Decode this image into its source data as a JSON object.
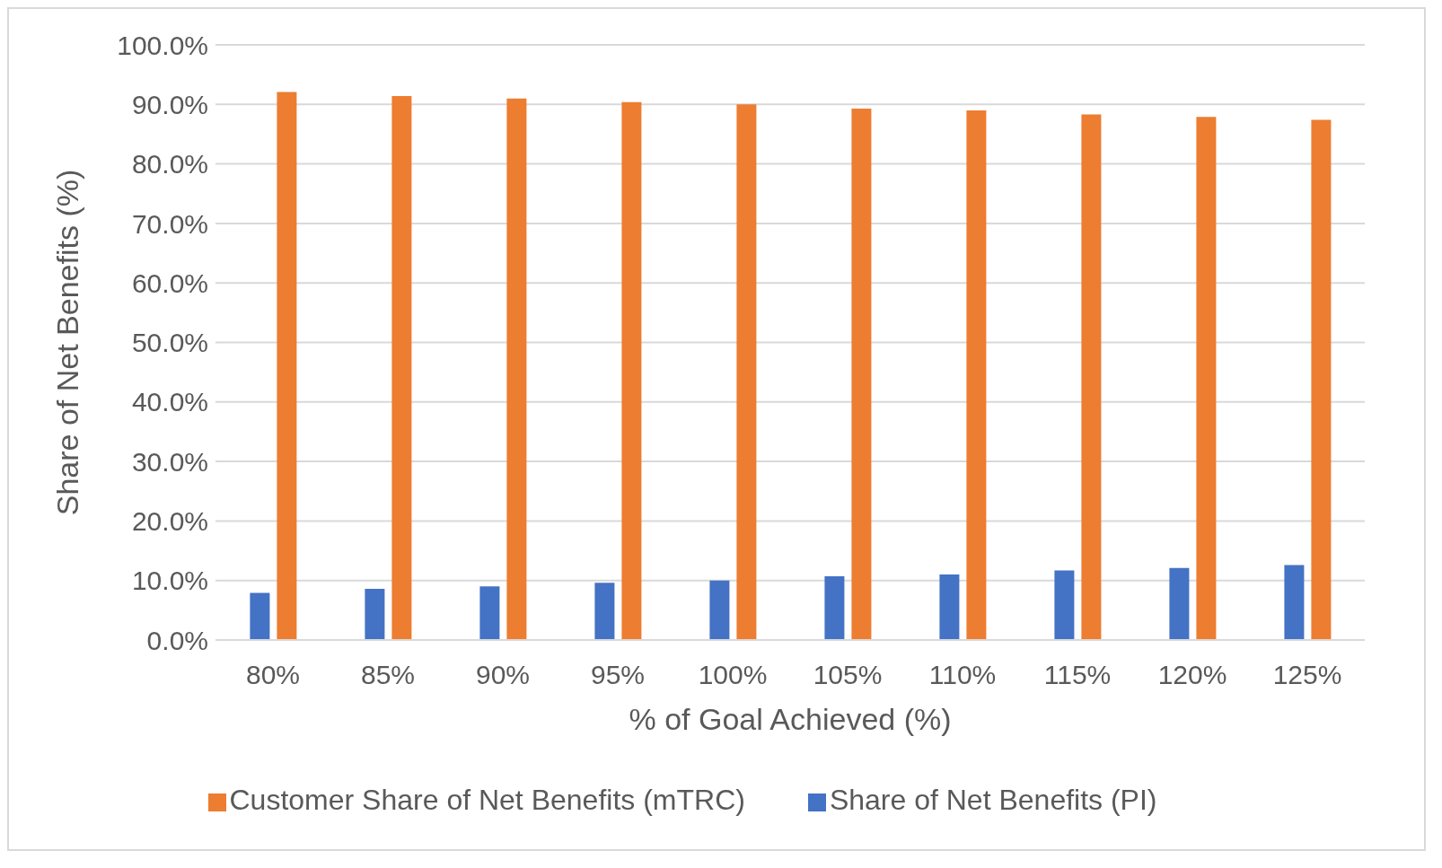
{
  "chart_data": {
    "type": "bar",
    "xlabel": "% of Goal Achieved (%)",
    "ylabel": "Share of Net Benefits (%)",
    "categories": [
      "80%",
      "85%",
      "90%",
      "95%",
      "100%",
      "105%",
      "110%",
      "115%",
      "120%",
      "125%"
    ],
    "series": [
      {
        "name": "Share of Net Benefits (PI)",
        "color": "#4472c4",
        "values": [
          7.9,
          8.6,
          9.0,
          9.6,
          10.0,
          10.7,
          11.0,
          11.7,
          12.1,
          12.6
        ]
      },
      {
        "name": "Customer Share of Net Benefits (mTRC)",
        "color": "#ed7d31",
        "values": [
          92.1,
          91.4,
          91.0,
          90.4,
          90.0,
          89.3,
          89.0,
          88.3,
          87.9,
          87.4
        ]
      }
    ],
    "ylim": [
      0,
      100
    ],
    "yticks": [
      {
        "value": 0,
        "label": "0.0%"
      },
      {
        "value": 10,
        "label": "10.0%"
      },
      {
        "value": 20,
        "label": "20.0%"
      },
      {
        "value": 30,
        "label": "30.0%"
      },
      {
        "value": 40,
        "label": "40.0%"
      },
      {
        "value": 50,
        "label": "50.0%"
      },
      {
        "value": 60,
        "label": "60.0%"
      },
      {
        "value": 70,
        "label": "70.0%"
      },
      {
        "value": 80,
        "label": "80.0%"
      },
      {
        "value": 90,
        "label": "90.0%"
      },
      {
        "value": 100,
        "label": "100.0%"
      }
    ],
    "grid": "y",
    "legend": "bottom"
  }
}
